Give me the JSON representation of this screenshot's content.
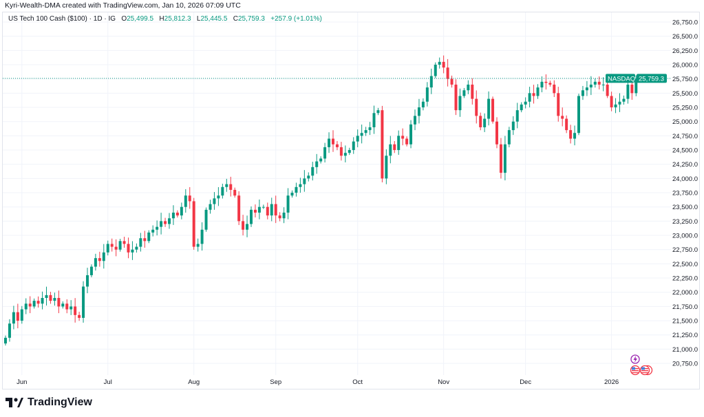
{
  "credit": "Kyri-Wealth-DMA created with TradingView.com, Jan 10, 2026 07:09 UTC",
  "legend": {
    "symbol": "US Tech 100 Cash ($100) · 1D · IG",
    "o_label": "O",
    "o": "25,499.5",
    "h_label": "H",
    "h": "25,812.3",
    "l_label": "L",
    "l": "25,445.5",
    "c_label": "C",
    "c": "25,759.3",
    "change": "+257.9 (+1.01%)"
  },
  "price_tag": {
    "name": "NASDAQ",
    "value": "25,759.3"
  },
  "logo": "TradingView",
  "colors": {
    "up": "#089981",
    "down": "#f23645",
    "grid": "#f0f3fa",
    "event": "#9c27b0"
  },
  "chart_data": {
    "type": "candlestick",
    "title": "US Tech 100 Cash ($100) · 1D · IG",
    "ylim": [
      20625,
      26875
    ],
    "y_ticks": [
      "26,750.0",
      "26,500.0",
      "26,250.0",
      "26,000.0",
      "25,750.0",
      "25,500.0",
      "25,250.0",
      "25,000.0",
      "24,750.0",
      "24,500.0",
      "24,250.0",
      "24,000.0",
      "23,750.0",
      "23,500.0",
      "23,250.0",
      "23,000.0",
      "22,750.0",
      "22,500.0",
      "22,250.0",
      "22,000.0",
      "21,750.0",
      "21,500.0",
      "21,250.0",
      "21,000.0",
      "20,750.0"
    ],
    "x_ticks": [
      {
        "label": "Jun",
        "index": 4
      },
      {
        "label": "Jul",
        "index": 25
      },
      {
        "label": "Aug",
        "index": 46
      },
      {
        "label": "Sep",
        "index": 66
      },
      {
        "label": "Oct",
        "index": 86
      },
      {
        "label": "Nov",
        "index": 107
      },
      {
        "label": "Dec",
        "index": 127
      },
      {
        "label": "2026",
        "index": 148
      }
    ],
    "first_open": 21100,
    "last_candle": {
      "open": 25499.5,
      "high": 25812.3,
      "low": 25445.5,
      "close": 25759.3
    },
    "current_price": 25759.3,
    "close": [
      21200,
      21450,
      21650,
      21500,
      21700,
      21800,
      21750,
      21850,
      21800,
      21900,
      21950,
      21850,
      21900,
      21750,
      21800,
      21700,
      21750,
      21600,
      21550,
      22100,
      22300,
      22450,
      22600,
      22550,
      22700,
      22850,
      22800,
      22750,
      22900,
      22850,
      22700,
      22750,
      22800,
      22950,
      22900,
      23050,
      23100,
      23150,
      23250,
      23200,
      23300,
      23400,
      23350,
      23500,
      23700,
      23600,
      22800,
      22850,
      23100,
      23450,
      23550,
      23650,
      23700,
      23850,
      23900,
      23800,
      23700,
      23250,
      23100,
      23200,
      23450,
      23400,
      23500,
      23500,
      23350,
      23550,
      23350,
      23300,
      23400,
      23700,
      23750,
      23850,
      23900,
      24000,
      24050,
      24200,
      24300,
      24350,
      24550,
      24700,
      24600,
      24550,
      24400,
      24450,
      24500,
      24650,
      24750,
      24800,
      24850,
      24900,
      25150,
      25200,
      24000,
      24400,
      24600,
      24500,
      24750,
      24700,
      24600,
      24950,
      25100,
      25250,
      25350,
      25600,
      25800,
      26000,
      26050,
      25950,
      25750,
      25650,
      25200,
      25450,
      25550,
      25650,
      25400,
      25100,
      24900,
      25050,
      25400,
      25000,
      24600,
      24100,
      24600,
      24850,
      25000,
      25200,
      25300,
      25350,
      25500,
      25450,
      25600,
      25700,
      25680,
      25650,
      25500,
      25100,
      25050,
      24850,
      24700,
      24800,
      25450,
      25550,
      25600,
      25650,
      25700,
      25650,
      25650,
      25450,
      25250,
      25300,
      25350,
      25400,
      25650,
      25500,
      25759.3
    ]
  }
}
